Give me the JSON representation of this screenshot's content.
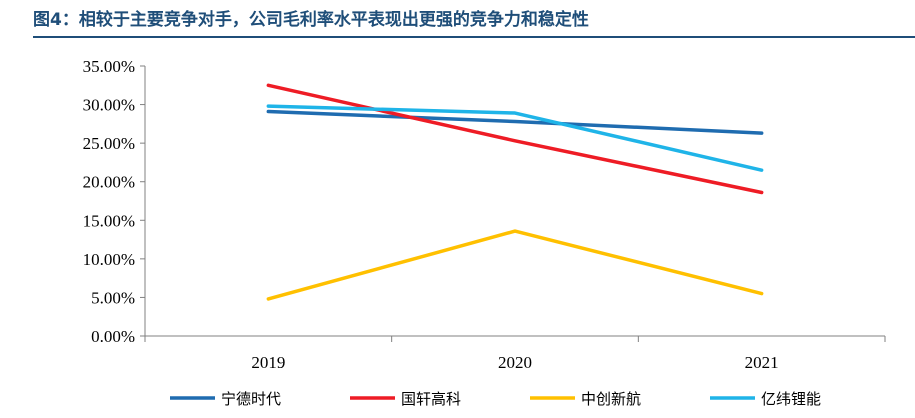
{
  "title": "图4：相较于主要竞争对手，公司毛利率水平表现出更强的竞争力和稳定性",
  "chart_data": {
    "type": "line",
    "x": [
      "2019",
      "2020",
      "2021"
    ],
    "ylim": [
      0,
      35
    ],
    "yticks": [
      0,
      5,
      10,
      15,
      20,
      25,
      30,
      35
    ],
    "ytick_labels": [
      "0.00%",
      "5.00%",
      "10.00%",
      "15.00%",
      "20.00%",
      "25.00%",
      "30.00%",
      "35.00%"
    ],
    "grid": false,
    "legend_position": "bottom",
    "series": [
      {
        "name": "宁德时代",
        "color": "#1f6cb0",
        "values": [
          29.1,
          27.8,
          26.3
        ]
      },
      {
        "name": "国轩高科",
        "color": "#ee1c25",
        "values": [
          32.5,
          25.3,
          18.6
        ]
      },
      {
        "name": "中创新航",
        "color": "#ffc000",
        "values": [
          4.8,
          13.6,
          5.5
        ]
      },
      {
        "name": "亿纬锂能",
        "color": "#1fb4e8",
        "values": [
          29.8,
          28.9,
          21.5
        ]
      }
    ]
  }
}
